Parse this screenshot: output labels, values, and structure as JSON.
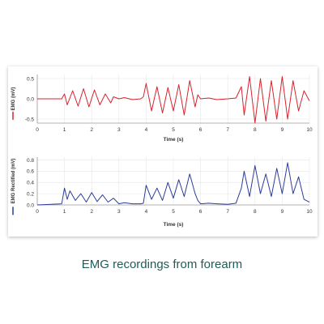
{
  "caption": "EMG recordings from forearm",
  "colors": {
    "raw": "#d9232e",
    "rect": "#2b3d9c",
    "grid": "#e6e6e6",
    "axis": "#9a9a9a",
    "text": "#333333",
    "caption": "#1f5c5a"
  },
  "chart_data": [
    {
      "type": "line",
      "title": "",
      "xlabel": "Time (s)",
      "ylabel": "EMG (mV)",
      "xlim": [
        0,
        10
      ],
      "ylim": [
        -0.6,
        0.6
      ],
      "xticks": [
        0,
        1,
        2,
        3,
        4,
        5,
        6,
        7,
        8,
        9,
        10
      ],
      "yticks": [
        -0.5,
        0.0,
        0.5
      ],
      "grid": true,
      "series": [
        {
          "color": "#d9232e",
          "x": [
            0,
            0.5,
            0.9,
            1.0,
            1.1,
            1.3,
            1.5,
            1.7,
            1.9,
            2.1,
            2.3,
            2.5,
            2.7,
            2.8,
            3.0,
            3.2,
            3.5,
            3.8,
            3.9,
            4.0,
            4.2,
            4.4,
            4.6,
            4.8,
            5.0,
            5.2,
            5.4,
            5.6,
            5.8,
            5.9,
            6.0,
            6.3,
            6.6,
            7.0,
            7.3,
            7.5,
            7.6,
            7.8,
            8.0,
            8.2,
            8.4,
            8.6,
            8.8,
            9.0,
            9.2,
            9.4,
            9.6,
            9.8,
            10.0
          ],
          "y": [
            0.0,
            0.0,
            0.0,
            0.12,
            -0.15,
            0.2,
            -0.18,
            0.25,
            -0.2,
            0.22,
            -0.15,
            0.12,
            -0.1,
            0.05,
            0.0,
            0.03,
            -0.02,
            0.0,
            0.05,
            0.38,
            -0.3,
            0.3,
            -0.35,
            0.28,
            -0.3,
            0.35,
            -0.4,
            0.45,
            -0.2,
            0.1,
            0.0,
            0.02,
            -0.02,
            0.0,
            0.02,
            0.3,
            -0.4,
            0.55,
            -0.6,
            0.5,
            -0.55,
            0.45,
            -0.5,
            0.55,
            -0.5,
            0.45,
            -0.3,
            0.2,
            -0.05
          ]
        }
      ]
    },
    {
      "type": "line",
      "title": "",
      "xlabel": "Time (s)",
      "ylabel": "EMG Rectified (mV)",
      "xlim": [
        0,
        10
      ],
      "ylim": [
        0,
        0.85
      ],
      "xticks": [
        0,
        1,
        2,
        3,
        4,
        5,
        6,
        7,
        8,
        9,
        10
      ],
      "yticks": [
        0.0,
        0.2,
        0.4,
        0.6,
        0.8
      ],
      "grid": true,
      "series": [
        {
          "color": "#2b3d9c",
          "x": [
            0,
            0.5,
            0.9,
            1.0,
            1.1,
            1.2,
            1.4,
            1.6,
            1.8,
            2.0,
            2.2,
            2.4,
            2.6,
            2.8,
            3.0,
            3.2,
            3.5,
            3.8,
            3.9,
            4.0,
            4.2,
            4.4,
            4.6,
            4.8,
            5.0,
            5.2,
            5.4,
            5.6,
            5.8,
            5.9,
            6.0,
            6.3,
            6.6,
            7.0,
            7.3,
            7.5,
            7.6,
            7.8,
            8.0,
            8.2,
            8.4,
            8.6,
            8.8,
            9.0,
            9.2,
            9.4,
            9.6,
            9.8,
            10.0
          ],
          "y": [
            0.0,
            0.01,
            0.02,
            0.3,
            0.1,
            0.25,
            0.08,
            0.2,
            0.05,
            0.22,
            0.06,
            0.18,
            0.05,
            0.12,
            0.02,
            0.04,
            0.02,
            0.02,
            0.03,
            0.35,
            0.1,
            0.3,
            0.08,
            0.4,
            0.12,
            0.45,
            0.15,
            0.55,
            0.2,
            0.08,
            0.02,
            0.03,
            0.02,
            0.01,
            0.03,
            0.3,
            0.6,
            0.15,
            0.7,
            0.2,
            0.55,
            0.15,
            0.65,
            0.2,
            0.75,
            0.2,
            0.5,
            0.1,
            0.05
          ]
        }
      ]
    }
  ]
}
